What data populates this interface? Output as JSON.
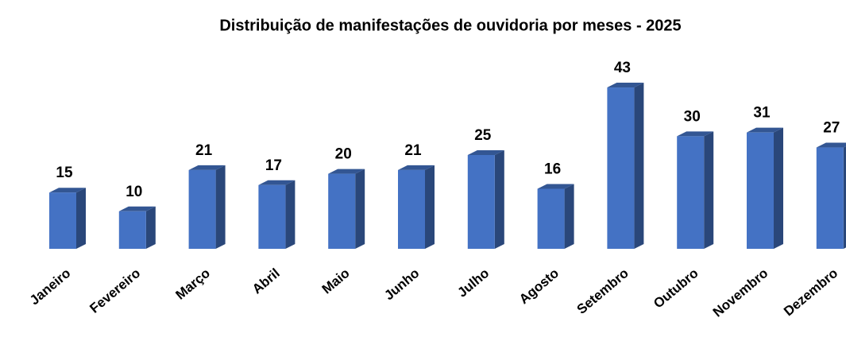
{
  "chart_data": {
    "type": "bar3d",
    "title": "Distribuição de manifestações de ouvidoria por meses - 2025",
    "categories": [
      "Janeiro",
      "Fevereiro",
      "Março",
      "Abril",
      "Maio",
      "Junho",
      "Julho",
      "Agosto",
      "Setembro",
      "Outubro",
      "Novembro",
      "Dezembro"
    ],
    "values": [
      15,
      10,
      21,
      17,
      20,
      21,
      25,
      16,
      43,
      30,
      31,
      27
    ],
    "color": "#4472c4"
  }
}
